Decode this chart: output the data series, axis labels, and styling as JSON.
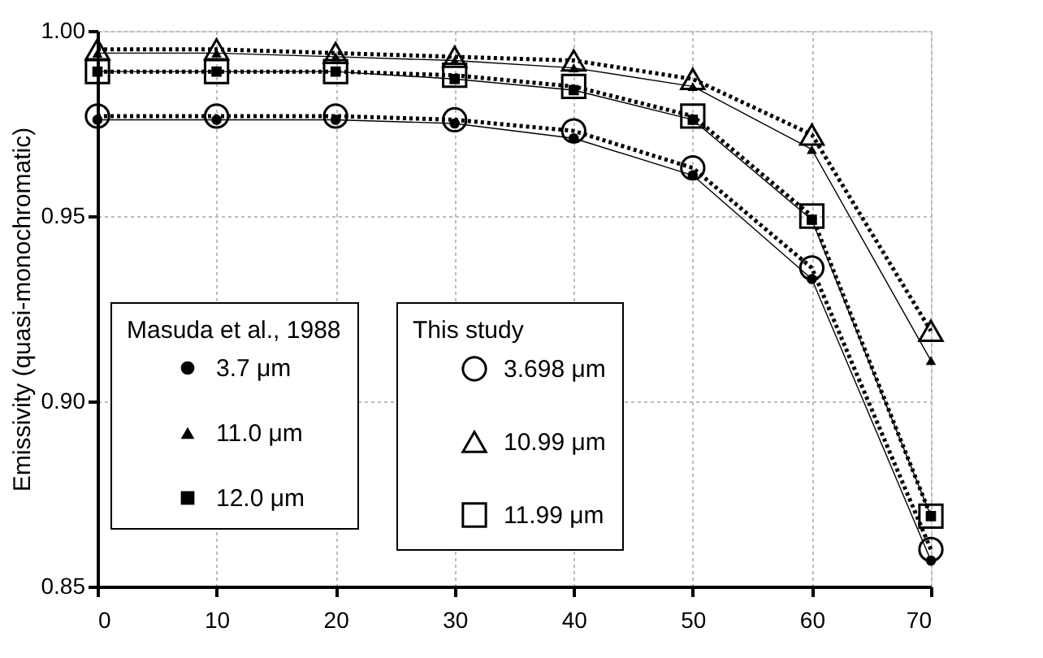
{
  "chart_data": {
    "type": "line",
    "ylabel": "Emissivity (quasi-monochromatic)",
    "x": [
      0,
      10,
      20,
      30,
      40,
      50,
      60,
      70
    ],
    "xlim": [
      0,
      70
    ],
    "xticks": [
      0,
      10,
      20,
      30,
      40,
      50,
      60,
      70
    ],
    "ylim": [
      0.85,
      1.0
    ],
    "yticks": [
      0.85,
      {
        "value": 0.9,
        "label": "0.90"
      },
      0.95,
      {
        "value": 1.0,
        "label": "1.00"
      }
    ],
    "grid": true,
    "legend": "bottom left",
    "annotations": [
      "Masuda et al., 1988",
      "This study"
    ],
    "series": [
      {
        "name": "3.7 μm",
        "color": "#000000",
        "marker": "circle",
        "line_style": "solid",
        "values": [
          0.976,
          0.976,
          0.976,
          0.975,
          0.971,
          0.961,
          0.933,
          0.857
        ]
      },
      {
        "name": "11.0 μm",
        "color": "#000000",
        "marker": "triangle",
        "line_style": "solid",
        "values": [
          0.994,
          0.994,
          0.993,
          0.992,
          0.99,
          0.985,
          0.968,
          0.911
        ]
      },
      {
        "name": "12.0 μm",
        "color": "#000000",
        "marker": "square",
        "line_style": "solid",
        "values": [
          0.989,
          0.989,
          0.989,
          0.987,
          0.984,
          0.976,
          0.949,
          0.869
        ]
      },
      {
        "name": "3.698 μm",
        "color": "#000000",
        "marker": "circle",
        "line_style": "dotted",
        "values": [
          0.977,
          0.977,
          0.977,
          0.976,
          0.973,
          0.963,
          0.936,
          0.86
        ]
      },
      {
        "name": "10.99 μm",
        "color": "#000000",
        "marker": "triangle",
        "line_style": "dotted",
        "values": [
          0.995,
          0.995,
          0.994,
          0.993,
          0.992,
          0.987,
          0.972,
          0.919
        ]
      },
      {
        "name": "11.99 μm",
        "color": "#000000",
        "marker": "square",
        "line_style": "dotted",
        "values": [
          0.989,
          0.989,
          0.989,
          0.988,
          0.985,
          0.977,
          0.95,
          0.869
        ]
      }
    ]
  }
}
